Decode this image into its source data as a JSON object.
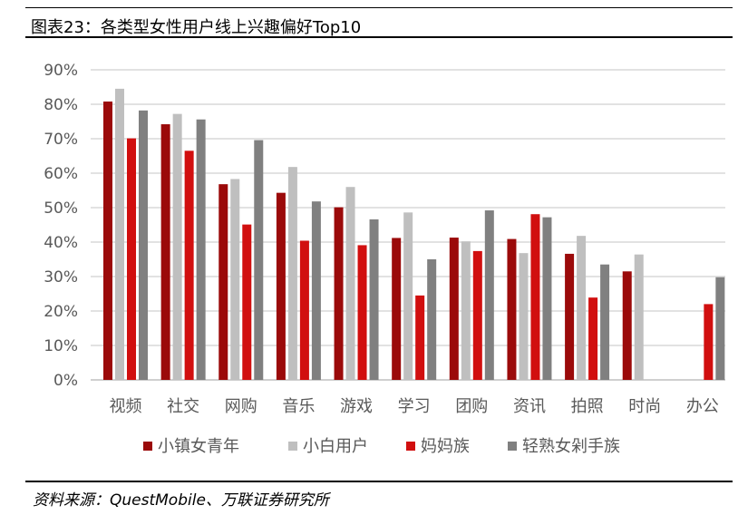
{
  "header": {
    "title": "图表23：各类型女性用户线上兴趣偏好Top10"
  },
  "footer": {
    "source": "资料来源：QuestMobile、万联证券研究所"
  },
  "colors": {
    "series": [
      "#9b0a0a",
      "#bfbfbf",
      "#d10f0f",
      "#808080"
    ],
    "grid": "#d9d9d9",
    "axis_text": "#595959"
  },
  "chart_data": {
    "type": "bar",
    "title": "",
    "xlabel": "",
    "ylabel": "",
    "ylim": [
      0,
      90
    ],
    "yticks": [
      "0%",
      "10%",
      "20%",
      "30%",
      "40%",
      "50%",
      "60%",
      "70%",
      "80%",
      "90%"
    ],
    "grid": true,
    "legend_position": "bottom",
    "categories": [
      "视频",
      "社交",
      "网购",
      "音乐",
      "游戏",
      "学习",
      "团购",
      "资讯",
      "拍照",
      "时尚",
      "办公"
    ],
    "series": [
      {
        "name": "小镇女青年",
        "values": [
          80.8,
          74.2,
          56.8,
          54.3,
          50.1,
          41.2,
          41.3,
          40.9,
          36.6,
          31.5,
          null
        ]
      },
      {
        "name": "小白用户",
        "values": [
          84.5,
          77.2,
          58.3,
          61.8,
          56.0,
          48.6,
          40.2,
          36.8,
          41.8,
          36.4,
          null
        ]
      },
      {
        "name": "妈妈族",
        "values": [
          70.1,
          66.5,
          45.1,
          40.4,
          39.1,
          24.5,
          37.4,
          48.1,
          23.9,
          null,
          22.0
        ]
      },
      {
        "name": "轻熟女剁手族",
        "values": [
          78.2,
          75.6,
          69.6,
          51.8,
          46.6,
          35.0,
          49.2,
          47.2,
          33.5,
          null,
          29.8
        ]
      }
    ]
  }
}
